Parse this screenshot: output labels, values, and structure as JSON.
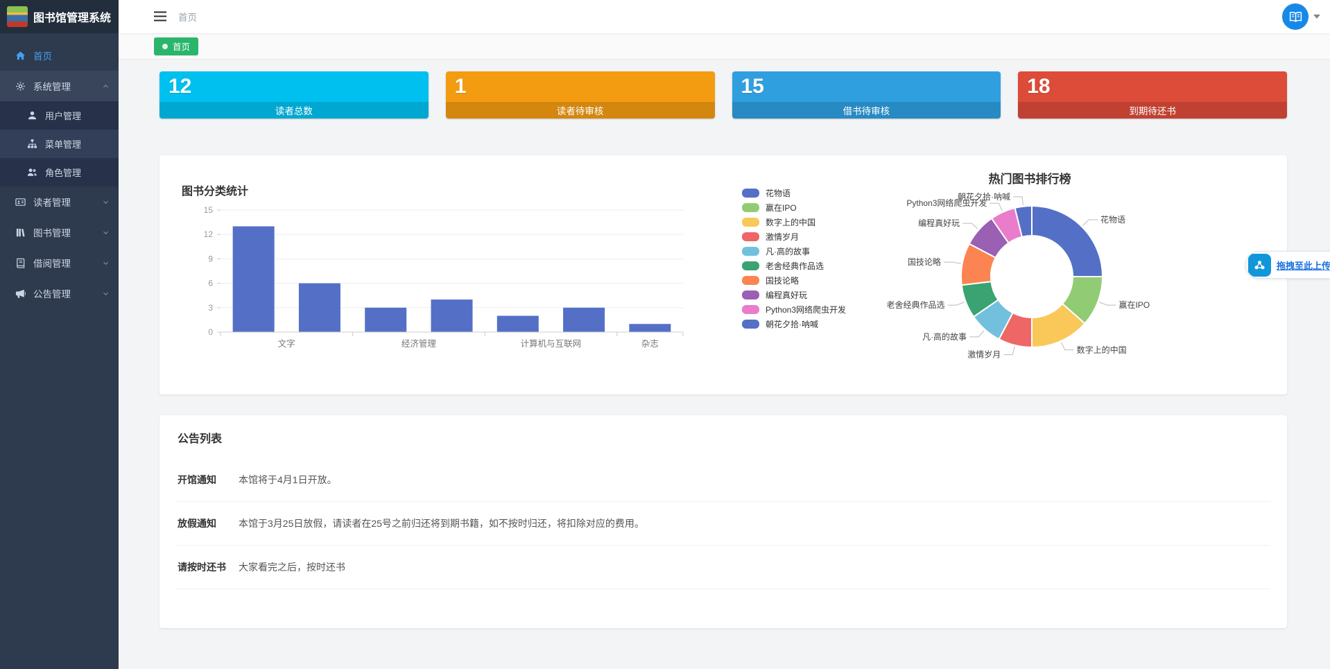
{
  "app": {
    "title": "图书馆管理系统"
  },
  "sidebar": {
    "items": [
      {
        "label": "首页",
        "icon": "home",
        "active": true
      },
      {
        "label": "系统管理",
        "icon": "gear",
        "expanded": true,
        "children": [
          {
            "label": "用户管理",
            "icon": "user"
          },
          {
            "label": "菜单管理",
            "icon": "sitemap",
            "highlight": true
          },
          {
            "label": "角色管理",
            "icon": "users"
          }
        ]
      },
      {
        "label": "读者管理",
        "icon": "id-card",
        "collapsed": true
      },
      {
        "label": "图书管理",
        "icon": "books",
        "collapsed": true
      },
      {
        "label": "借阅管理",
        "icon": "borrow",
        "collapsed": true
      },
      {
        "label": "公告管理",
        "icon": "megaphone",
        "collapsed": true
      }
    ]
  },
  "header": {
    "breadcrumb": "首页"
  },
  "tabbar": {
    "active_tab": "首页"
  },
  "stat_cards": [
    {
      "value": "12",
      "label": "读者总数",
      "color": "#00c0ef"
    },
    {
      "value": "1",
      "label": "读者待审核",
      "color": "#f39c12"
    },
    {
      "value": "15",
      "label": "借书待审核",
      "color": "#2f9fdf"
    },
    {
      "value": "18",
      "label": "到期待还书",
      "color": "#dd4b39"
    }
  ],
  "chart_data": [
    {
      "type": "bar",
      "title": "图书分类统计",
      "values": [
        13,
        6,
        3,
        4,
        2,
        3,
        1
      ],
      "groups": [
        {
          "label": "文字",
          "bars": 2
        },
        {
          "label": "经济管理",
          "bars": 2
        },
        {
          "label": "计算机与互联网",
          "bars": 2
        },
        {
          "label": "杂志",
          "bars": 1
        }
      ],
      "yticks": [
        0,
        3,
        6,
        9,
        12,
        15
      ],
      "ylim": [
        0,
        15
      ],
      "bar_color": "#5470c6",
      "grid": true
    },
    {
      "type": "pie",
      "title": "热门图书排行榜",
      "donut": true,
      "legend_position": "left",
      "items": [
        {
          "name": "花物语",
          "value": 13,
          "color": "#5470c6"
        },
        {
          "name": "赢在IPO",
          "value": 6,
          "color": "#91cc75"
        },
        {
          "name": "数字上的中国",
          "value": 7,
          "color": "#fac858"
        },
        {
          "name": "激情岁月",
          "value": 4,
          "color": "#ee6666"
        },
        {
          "name": "凡·高的故事",
          "value": 4,
          "color": "#73c0de"
        },
        {
          "name": "老舍经典作品选",
          "value": 4,
          "color": "#3ba272"
        },
        {
          "name": "国技论略",
          "value": 5,
          "color": "#fc8452"
        },
        {
          "name": "编程真好玩",
          "value": 4,
          "color": "#9a60b4"
        },
        {
          "name": "Python3网络爬虫开发",
          "value": 3,
          "color": "#ea7ccc"
        },
        {
          "name": "朝花夕拾·呐喊",
          "value": 2,
          "color": "#5470c6"
        }
      ]
    }
  ],
  "upload_widget": {
    "label": "拖拽至此上传"
  },
  "announcements": {
    "title": "公告列表",
    "items": [
      {
        "title": "开馆通知",
        "content": "本馆将于4月1日开放。"
      },
      {
        "title": "放假通知",
        "content": "本馆于3月25日放假，请读者在25号之前归还将到期书籍，如不按时归还，将扣除对应的费用。"
      },
      {
        "title": "请按时还书",
        "content": "大家看完之后，按时还书"
      }
    ]
  }
}
